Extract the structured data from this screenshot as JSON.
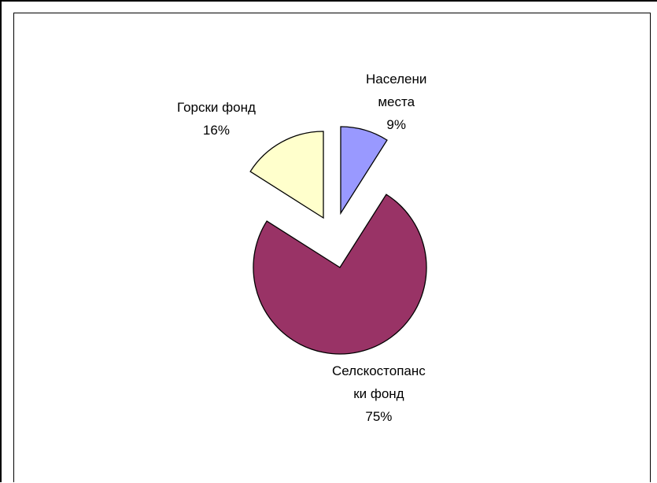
{
  "chart_data": {
    "type": "pie",
    "title": "",
    "legend": "none",
    "exploded": true,
    "slices": [
      {
        "label_lines": [
          "Населени",
          "места"
        ],
        "percent_label": "9%",
        "value": 9,
        "color": "#9999ff"
      },
      {
        "label_lines": [
          "Селскостопанс",
          "ки фонд"
        ],
        "percent_label": "75%",
        "value": 75,
        "color": "#993366"
      },
      {
        "label_lines": [
          "Горски фонд"
        ],
        "percent_label": "16%",
        "value": 16,
        "color": "#ffffcc"
      }
    ]
  }
}
